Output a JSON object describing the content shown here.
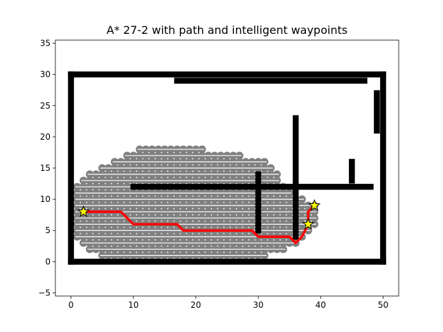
{
  "chart_data": {
    "type": "scatter",
    "title": "A* 27-2 with path and intelligent waypoints",
    "xlabel": "",
    "ylabel": "",
    "xlim": [
      -2.5,
      52.5
    ],
    "ylim": [
      -5.5,
      35.5
    ],
    "xticks": [
      "0",
      "10",
      "20",
      "30",
      "40",
      "50"
    ],
    "xtick_values": [
      0,
      10,
      20,
      30,
      40,
      50
    ],
    "yticks": [
      "−5",
      "0",
      "5",
      "10",
      "15",
      "20",
      "25",
      "30",
      "35"
    ],
    "ytick_values": [
      -5,
      0,
      5,
      10,
      15,
      20,
      25,
      30,
      35
    ],
    "grid": false,
    "colors": {
      "explored": "#808080",
      "obstacle": "#000000",
      "path": "#ff0000",
      "waypoint_fill": "#ffff00",
      "waypoint_edge": "#000000"
    },
    "obstacle_segments": [
      {
        "x0": 0,
        "y0": 0,
        "x1": 50,
        "y1": 0
      },
      {
        "x0": 0,
        "y0": 0,
        "x1": 0,
        "y1": 30
      },
      {
        "x0": 0,
        "y0": 30,
        "x1": 50,
        "y1": 30
      },
      {
        "x0": 50,
        "y0": 0,
        "x1": 50,
        "y1": 30
      },
      {
        "x0": 17,
        "y0": 29,
        "x1": 47,
        "y1": 29
      },
      {
        "x0": 49,
        "y0": 21,
        "x1": 49,
        "y1": 27
      },
      {
        "x0": 10,
        "y0": 12,
        "x1": 48,
        "y1": 12
      },
      {
        "x0": 30,
        "y0": 5,
        "x1": 30,
        "y1": 14
      },
      {
        "x0": 36,
        "y0": 4,
        "x1": 36,
        "y1": 23
      },
      {
        "x0": 45,
        "y0": 13,
        "x1": 45,
        "y1": 16
      }
    ],
    "explored_rows": [
      {
        "y": 1,
        "x0": 5,
        "x1": 31
      },
      {
        "y": 2,
        "x0": 3,
        "x1": 34
      },
      {
        "y": 3,
        "x0": 2,
        "x1": 36
      },
      {
        "y": 4,
        "x0": 1,
        "x1": 37
      },
      {
        "y": 5,
        "x0": 1,
        "x1": 38
      },
      {
        "y": 6,
        "x0": 1,
        "x1": 39
      },
      {
        "y": 7,
        "x0": 1,
        "x1": 39
      },
      {
        "y": 8,
        "x0": 1,
        "x1": 39
      },
      {
        "y": 9,
        "x0": 1,
        "x1": 39
      },
      {
        "y": 10,
        "x0": 1,
        "x1": 37
      },
      {
        "y": 11,
        "x0": 1,
        "x1": 35
      },
      {
        "y": 12,
        "x0": 1,
        "x1": 34
      },
      {
        "y": 13,
        "x0": 2,
        "x1": 33
      },
      {
        "y": 14,
        "x0": 3,
        "x1": 33
      },
      {
        "y": 15,
        "x0": 5,
        "x1": 32
      },
      {
        "y": 16,
        "x0": 7,
        "x1": 31
      },
      {
        "y": 17,
        "x0": 9,
        "x1": 27
      },
      {
        "y": 18,
        "x0": 11,
        "x1": 21
      }
    ],
    "path": {
      "x": [
        2,
        8,
        10,
        17,
        18,
        29,
        30,
        35,
        36,
        37,
        38,
        38,
        39
      ],
      "y": [
        8,
        8,
        6,
        6,
        5,
        5,
        4,
        4,
        3,
        4,
        6,
        8,
        9
      ]
    },
    "waypoints": {
      "x": [
        2,
        38,
        39
      ],
      "y": [
        8,
        6,
        9
      ]
    }
  }
}
